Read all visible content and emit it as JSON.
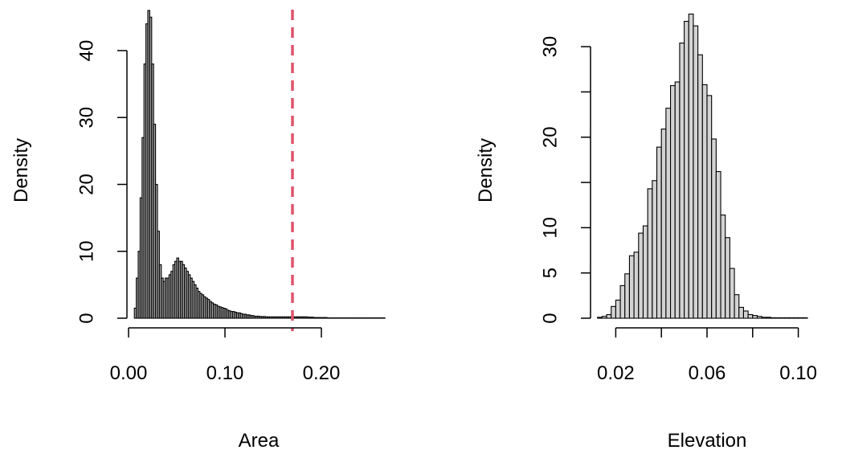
{
  "chart_data": [
    {
      "type": "bar",
      "xlabel": "Area",
      "ylabel": "Density",
      "xlim": [
        0,
        0.27
      ],
      "ylim": [
        0,
        46
      ],
      "x_ticks": [
        0.0,
        0.1,
        0.2
      ],
      "x_tick_labels": [
        "0.00",
        "0.10",
        "0.20"
      ],
      "y_ticks": [
        0,
        10,
        20,
        30,
        40
      ],
      "y_tick_labels": [
        "0",
        "10",
        "20",
        "30",
        "40"
      ],
      "bar_fill": "#aaaaaa",
      "bar_stroke": "#000000",
      "reference_line": {
        "x": 0.17,
        "color": "#df536b",
        "style": "dashed"
      },
      "bin_width": 0.002,
      "bins": [
        [
          0.006,
          1.5
        ],
        [
          0.008,
          6
        ],
        [
          0.01,
          10
        ],
        [
          0.012,
          18
        ],
        [
          0.014,
          27
        ],
        [
          0.016,
          38
        ],
        [
          0.018,
          44
        ],
        [
          0.02,
          46
        ],
        [
          0.022,
          45
        ],
        [
          0.024,
          38
        ],
        [
          0.026,
          29
        ],
        [
          0.028,
          20
        ],
        [
          0.03,
          13
        ],
        [
          0.032,
          8
        ],
        [
          0.034,
          6
        ],
        [
          0.036,
          5.5
        ],
        [
          0.038,
          6
        ],
        [
          0.04,
          6
        ],
        [
          0.042,
          6.5
        ],
        [
          0.044,
          7
        ],
        [
          0.046,
          8
        ],
        [
          0.048,
          8.5
        ],
        [
          0.05,
          9
        ],
        [
          0.052,
          8.5
        ],
        [
          0.054,
          8.5
        ],
        [
          0.056,
          8
        ],
        [
          0.058,
          7.5
        ],
        [
          0.06,
          7
        ],
        [
          0.062,
          6.5
        ],
        [
          0.064,
          6
        ],
        [
          0.066,
          5.5
        ],
        [
          0.068,
          5
        ],
        [
          0.07,
          4.5
        ],
        [
          0.072,
          4
        ],
        [
          0.074,
          3.7
        ],
        [
          0.076,
          3.5
        ],
        [
          0.078,
          3.2
        ],
        [
          0.08,
          3
        ],
        [
          0.082,
          2.8
        ],
        [
          0.084,
          2.5
        ],
        [
          0.086,
          2.3
        ],
        [
          0.088,
          2.1
        ],
        [
          0.09,
          2
        ],
        [
          0.092,
          1.8
        ],
        [
          0.094,
          1.7
        ],
        [
          0.096,
          1.6
        ],
        [
          0.098,
          1.5
        ],
        [
          0.1,
          1.4
        ],
        [
          0.102,
          1.2
        ],
        [
          0.104,
          1.1
        ],
        [
          0.106,
          1
        ],
        [
          0.108,
          1
        ],
        [
          0.11,
          0.9
        ],
        [
          0.112,
          0.8
        ],
        [
          0.114,
          0.8
        ],
        [
          0.116,
          0.7
        ],
        [
          0.118,
          0.6
        ],
        [
          0.12,
          0.6
        ],
        [
          0.122,
          0.5
        ],
        [
          0.124,
          0.5
        ],
        [
          0.126,
          0.4
        ],
        [
          0.128,
          0.4
        ],
        [
          0.13,
          0.3
        ],
        [
          0.132,
          0.3
        ],
        [
          0.134,
          0.3
        ],
        [
          0.136,
          0.25
        ],
        [
          0.138,
          0.25
        ],
        [
          0.14,
          0.25
        ],
        [
          0.142,
          0.2
        ],
        [
          0.144,
          0.2
        ],
        [
          0.146,
          0.2
        ],
        [
          0.148,
          0.2
        ],
        [
          0.15,
          0.2
        ],
        [
          0.152,
          0.2
        ],
        [
          0.154,
          0.2
        ],
        [
          0.156,
          0.2
        ],
        [
          0.158,
          0.2
        ],
        [
          0.16,
          0.2
        ],
        [
          0.162,
          0.2
        ],
        [
          0.164,
          0.2
        ],
        [
          0.166,
          0.2
        ],
        [
          0.168,
          0.2
        ],
        [
          0.17,
          0.2
        ],
        [
          0.172,
          0.2
        ],
        [
          0.174,
          0.2
        ],
        [
          0.176,
          0.2
        ],
        [
          0.178,
          0.2
        ],
        [
          0.18,
          0.2
        ],
        [
          0.182,
          0.2
        ],
        [
          0.184,
          0.2
        ],
        [
          0.186,
          0.15
        ],
        [
          0.188,
          0.15
        ],
        [
          0.19,
          0.15
        ],
        [
          0.192,
          0.1
        ],
        [
          0.194,
          0.1
        ],
        [
          0.196,
          0.1
        ],
        [
          0.198,
          0.1
        ],
        [
          0.2,
          0.1
        ],
        [
          0.202,
          0.1
        ],
        [
          0.204,
          0.1
        ],
        [
          0.206,
          0.05
        ],
        [
          0.208,
          0.05
        ],
        [
          0.21,
          0.05
        ],
        [
          0.212,
          0.05
        ],
        [
          0.214,
          0.05
        ],
        [
          0.216,
          0.05
        ],
        [
          0.218,
          0.05
        ],
        [
          0.22,
          0.05
        ],
        [
          0.222,
          0.05
        ],
        [
          0.224,
          0.05
        ],
        [
          0.226,
          0.05
        ],
        [
          0.228,
          0.05
        ],
        [
          0.23,
          0.05
        ],
        [
          0.232,
          0.05
        ],
        [
          0.234,
          0.05
        ],
        [
          0.236,
          0.05
        ],
        [
          0.238,
          0.05
        ],
        [
          0.24,
          0.05
        ],
        [
          0.242,
          0.05
        ],
        [
          0.244,
          0.05
        ],
        [
          0.246,
          0.05
        ],
        [
          0.248,
          0.05
        ],
        [
          0.25,
          0.05
        ],
        [
          0.252,
          0.05
        ],
        [
          0.254,
          0.05
        ],
        [
          0.256,
          0.05
        ],
        [
          0.258,
          0.05
        ],
        [
          0.26,
          0.05
        ],
        [
          0.262,
          0.05
        ],
        [
          0.264,
          0.05
        ]
      ]
    },
    {
      "type": "bar",
      "xlabel": "Elevation",
      "ylabel": "Density",
      "xlim": [
        0.01,
        0.11
      ],
      "ylim": [
        0,
        34
      ],
      "x_ticks": [
        0.02,
        0.04,
        0.06,
        0.08,
        0.1
      ],
      "x_tick_labels": [
        "0.02",
        "",
        "0.06",
        "",
        "0.10"
      ],
      "y_ticks": [
        0,
        5,
        10,
        15,
        20,
        25,
        30
      ],
      "y_tick_labels": [
        "0",
        "5",
        "10",
        "",
        "20",
        "",
        "30"
      ],
      "bar_fill": "#d3d3d3",
      "bar_stroke": "#000000",
      "bin_width": 0.002,
      "bins": [
        [
          0.012,
          0.1
        ],
        [
          0.014,
          0.2
        ],
        [
          0.016,
          0.4
        ],
        [
          0.018,
          1.3
        ],
        [
          0.02,
          2
        ],
        [
          0.022,
          3.6
        ],
        [
          0.024,
          4.9
        ],
        [
          0.026,
          6.9
        ],
        [
          0.028,
          7.3
        ],
        [
          0.03,
          9.4
        ],
        [
          0.032,
          10.2
        ],
        [
          0.034,
          14.3
        ],
        [
          0.036,
          15.2
        ],
        [
          0.038,
          18.9
        ],
        [
          0.04,
          20.9
        ],
        [
          0.042,
          23.2
        ],
        [
          0.044,
          25.7
        ],
        [
          0.046,
          26.1
        ],
        [
          0.048,
          30.4
        ],
        [
          0.05,
          32.8
        ],
        [
          0.052,
          33.6
        ],
        [
          0.054,
          32.3
        ],
        [
          0.056,
          29.1
        ],
        [
          0.058,
          25.8
        ],
        [
          0.06,
          24.6
        ],
        [
          0.062,
          19.8
        ],
        [
          0.064,
          16.2
        ],
        [
          0.066,
          11.4
        ],
        [
          0.068,
          8.9
        ],
        [
          0.07,
          5.5
        ],
        [
          0.072,
          2.6
        ],
        [
          0.074,
          1.2
        ],
        [
          0.076,
          0.8
        ],
        [
          0.078,
          0.4
        ],
        [
          0.08,
          0.3
        ],
        [
          0.082,
          0.2
        ],
        [
          0.084,
          0.1
        ],
        [
          0.086,
          0.1
        ],
        [
          0.088,
          0.05
        ],
        [
          0.09,
          0.05
        ],
        [
          0.092,
          0.05
        ],
        [
          0.094,
          0.05
        ],
        [
          0.096,
          0.05
        ],
        [
          0.098,
          0.05
        ],
        [
          0.1,
          0.05
        ],
        [
          0.102,
          0.05
        ]
      ]
    }
  ]
}
